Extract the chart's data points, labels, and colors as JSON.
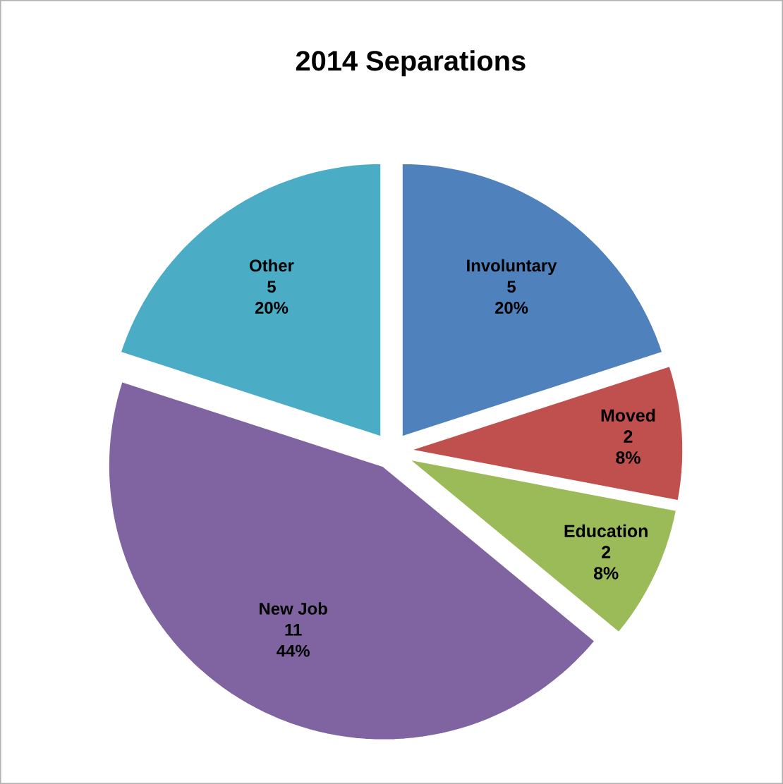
{
  "chart_data": {
    "type": "pie",
    "title": "2014 Separations",
    "categories": [
      "Involuntary",
      "Moved",
      "Education",
      "New Job",
      "Other"
    ],
    "values": [
      20,
      8,
      8,
      44,
      20
    ],
    "value_labels": [
      "20%",
      "8%",
      "8%",
      "44%",
      "20%"
    ],
    "colors": [
      "#4f81bd",
      "#c0504d",
      "#9bbb59",
      "#8064a2",
      "#4bacc6"
    ],
    "annotations": [
      "5",
      "2",
      "2",
      "11",
      "5"
    ]
  }
}
